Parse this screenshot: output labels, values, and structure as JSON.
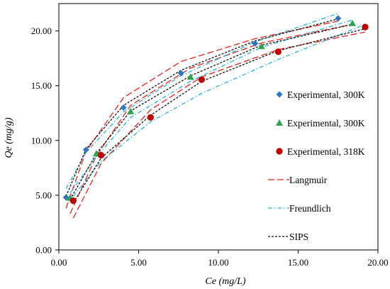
{
  "chart_data": {
    "type": "scatter",
    "xlabel": "Ce (mg/L)",
    "ylabel": "Qe (mg/g)",
    "xlim": [
      0,
      20
    ],
    "ylim": [
      0,
      22.5
    ],
    "xticks": [
      "0.00",
      "5.00",
      "10.00",
      "15.00",
      "20.00"
    ],
    "yticks": [
      "0.00",
      "5.00",
      "10.00",
      "15.00",
      "20.00"
    ],
    "xtick_values": [
      0,
      5,
      10,
      15,
      20
    ],
    "ytick_values": [
      0,
      5,
      10,
      15,
      20
    ],
    "grid": false,
    "legend_position": "right",
    "series": [
      {
        "name": "Experimental, 300K",
        "kind": "points",
        "marker": "diamond",
        "color": "#2e74c0",
        "x": [
          0.45,
          1.7,
          4.05,
          7.65,
          12.3,
          17.5
        ],
        "y": [
          4.8,
          9.15,
          13.0,
          16.15,
          18.85,
          21.15
        ]
      },
      {
        "name": "Experimental, 300K",
        "kind": "points",
        "marker": "triangle",
        "color": "#2ea44f",
        "x": [
          0.7,
          2.35,
          4.5,
          8.25,
          12.7,
          18.4
        ],
        "y": [
          4.75,
          8.8,
          12.65,
          15.8,
          18.6,
          20.7
        ]
      },
      {
        "name": "Experimental, 318K",
        "kind": "points",
        "marker": "circle",
        "color": "#c00000",
        "x": [
          0.9,
          2.65,
          5.75,
          8.95,
          13.75,
          19.2
        ],
        "y": [
          4.5,
          8.65,
          12.1,
          15.55,
          18.1,
          20.35
        ]
      },
      {
        "name": "Langmuir",
        "kind": "lines",
        "style": "long-dash",
        "color": "#e8231b",
        "lines": [
          {
            "x": [
              0.45,
              1.7,
              4.05,
              7.65,
              12.3,
              17.5
            ],
            "y": [
              3.8,
              9.0,
              13.9,
              17.2,
              19.3,
              20.9
            ]
          },
          {
            "x": [
              0.7,
              2.35,
              4.5,
              8.25,
              12.7,
              18.4
            ],
            "y": [
              3.3,
              8.6,
              13.2,
              16.6,
              18.9,
              20.6
            ]
          },
          {
            "x": [
              0.9,
              2.65,
              5.75,
              8.95,
              13.75,
              19.2
            ],
            "y": [
              2.9,
              7.9,
              12.8,
              15.8,
              18.3,
              19.9
            ]
          }
        ]
      },
      {
        "name": "Freundlich",
        "kind": "lines",
        "style": "dash-dot",
        "color": "#1eb4e6",
        "lines": [
          {
            "x": [
              0.45,
              1.7,
              4.05,
              7.65,
              12.3,
              17.5
            ],
            "y": [
              5.6,
              8.9,
              12.6,
              15.9,
              19.0,
              21.6
            ]
          },
          {
            "x": [
              0.7,
              2.35,
              4.5,
              8.25,
              12.7,
              18.4
            ],
            "y": [
              5.2,
              8.5,
              12.1,
              15.4,
              18.5,
              21.0
            ]
          },
          {
            "x": [
              0.9,
              2.65,
              5.75,
              8.95,
              13.75,
              19.2
            ],
            "y": [
              4.9,
              8.1,
              11.7,
              14.3,
              17.4,
              20.6
            ]
          }
        ]
      },
      {
        "name": "SIPS",
        "kind": "lines",
        "style": "short-dash",
        "color": "#111111",
        "lines": [
          {
            "x": [
              0.45,
              1.7,
              4.05,
              7.65,
              12.3,
              17.5
            ],
            "y": [
              4.9,
              9.2,
              13.2,
              16.4,
              19.1,
              21.1
            ]
          },
          {
            "x": [
              0.7,
              2.35,
              4.5,
              8.25,
              12.7,
              18.4
            ],
            "y": [
              4.6,
              8.8,
              12.7,
              15.9,
              18.7,
              20.6
            ]
          },
          {
            "x": [
              0.9,
              2.65,
              5.75,
              8.95,
              13.75,
              19.2
            ],
            "y": [
              4.3,
              8.4,
              12.3,
              15.4,
              18.2,
              20.2
            ]
          }
        ]
      }
    ]
  }
}
